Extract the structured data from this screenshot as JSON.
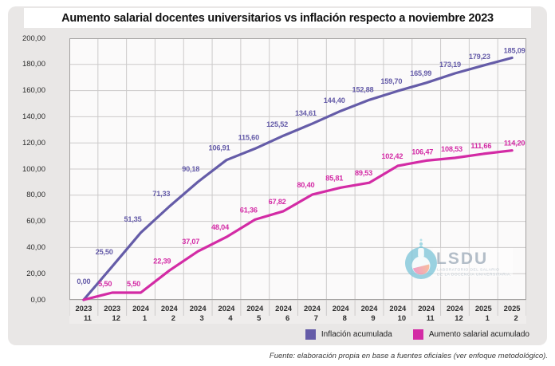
{
  "title": "Aumento salarial docentes universitarios vs inflación respecto a noviembre 2023",
  "footer": "Fuente: elaboración propia en base a fuentes oficiales (ver enfoque metodológico).",
  "watermark": {
    "acronym": "LSDU",
    "line1": "LABORATORIO DEL SALARIO",
    "line2": "DE LA DOCENCIA UNIVERSITARIA."
  },
  "colors": {
    "inflation": "#655CA8",
    "salary": "#D32BA5",
    "card_bg": "#E9E7E6",
    "plot_bg": "#FBFAFA",
    "grid": "#CCCACA",
    "plot_border": "#A3A1A0",
    "label_band": "#EFEDEC"
  },
  "chart_data": {
    "type": "line",
    "title": "Aumento salarial docentes universitarios vs inflación respecto a noviembre 2023",
    "ylim": [
      0,
      200
    ],
    "grid": true,
    "legend_position": "bottom-right",
    "y_ticks": [
      "0,00",
      "20,00",
      "40,00",
      "60,00",
      "80,00",
      "100,00",
      "120,00",
      "140,00",
      "160,00",
      "180,00",
      "200,00"
    ],
    "x_categories": [
      {
        "year": "2023",
        "month": "11"
      },
      {
        "year": "2023",
        "month": "12"
      },
      {
        "year": "2024",
        "month": "1"
      },
      {
        "year": "2024",
        "month": "2"
      },
      {
        "year": "2024",
        "month": "3"
      },
      {
        "year": "2024",
        "month": "4"
      },
      {
        "year": "2024",
        "month": "5"
      },
      {
        "year": "2024",
        "month": "6"
      },
      {
        "year": "2024",
        "month": "7"
      },
      {
        "year": "2024",
        "month": "8"
      },
      {
        "year": "2024",
        "month": "9"
      },
      {
        "year": "2024",
        "month": "10"
      },
      {
        "year": "2024",
        "month": "11"
      },
      {
        "year": "2024",
        "month": "12"
      },
      {
        "year": "2025",
        "month": "1"
      },
      {
        "year": "2025",
        "month": "2"
      }
    ],
    "series": [
      {
        "name": "Inflación acumulada",
        "color": "#655CA8",
        "values": [
          0.0,
          25.5,
          51.35,
          71.33,
          90.18,
          106.91,
          115.6,
          125.52,
          134.61,
          144.4,
          152.88,
          159.7,
          165.99,
          173.19,
          179.23,
          185.09
        ],
        "labels": [
          "0,00",
          "25,50",
          "51,35",
          "71,33",
          "90,18",
          "106,91",
          "115,60",
          "125,52",
          "134,61",
          "144,40",
          "152,88",
          "159,70",
          "165,99",
          "173,19",
          "179,23",
          "185,09"
        ]
      },
      {
        "name": "Aumento salarial acumulado",
        "color": "#D32BA5",
        "values": [
          0.0,
          5.5,
          5.5,
          22.39,
          37.07,
          48.04,
          61.36,
          67.82,
          80.4,
          85.81,
          89.53,
          102.42,
          106.47,
          108.53,
          111.66,
          114.2
        ],
        "labels": [
          "",
          "5,50",
          "5,50",
          "22,39",
          "37,07",
          "48,04",
          "61,36",
          "67,82",
          "80,40",
          "85,81",
          "89,53",
          "102,42",
          "106,47",
          "108,53",
          "111,66",
          "114,20"
        ]
      }
    ]
  }
}
